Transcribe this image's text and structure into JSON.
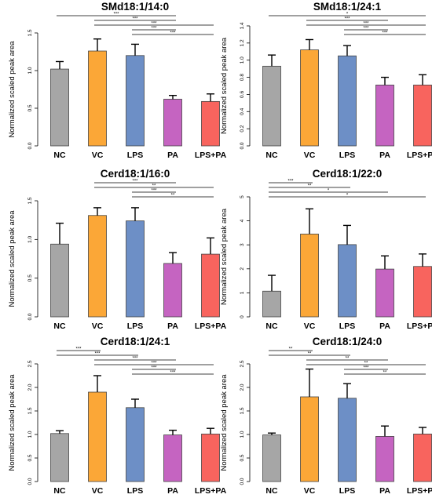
{
  "colors": {
    "NC": "#a6a6a6",
    "VC": "#fba737",
    "LPS": "#6d8fc6",
    "PA": "#c564c1",
    "LPS+PA": "#f8645e"
  },
  "chart_data": [
    {
      "type": "bar",
      "title": "SMd18:1/14:0",
      "ylabel": "Normalized scaled peak area",
      "ylim": [
        0,
        1.5
      ],
      "yticks": [
        "0.0",
        "0.5",
        "1.0",
        "1.5"
      ],
      "categories": [
        "NC",
        "VC",
        "LPS",
        "PA",
        "LPS+PA"
      ],
      "values": [
        1.02,
        1.26,
        1.2,
        0.62,
        0.59
      ],
      "errors": [
        0.1,
        0.16,
        0.15,
        0.05,
        0.1
      ],
      "significance": [
        {
          "from": "NC",
          "to": "PA",
          "label": "***"
        },
        {
          "from": "VC",
          "to": "PA",
          "label": "***"
        },
        {
          "from": "VC",
          "to": "LPS+PA",
          "label": "***"
        },
        {
          "from": "LPS",
          "to": "PA",
          "label": "***"
        },
        {
          "from": "LPS",
          "to": "LPS+PA",
          "label": "***"
        }
      ]
    },
    {
      "type": "bar",
      "title": "SMd18:1/24:1",
      "ylabel": "Normalized scaled peak area",
      "ylim": [
        0,
        1.4
      ],
      "yticks": [
        "0.0",
        "0.2",
        "0.4",
        "0.6",
        "0.8",
        "1.0",
        "1.2",
        "1.4"
      ],
      "categories": [
        "NC",
        "VC",
        "LPS",
        "PA",
        "LPS+PA"
      ],
      "values": [
        0.93,
        1.12,
        1.05,
        0.71,
        0.71
      ],
      "errors": [
        0.13,
        0.12,
        0.12,
        0.09,
        0.12
      ],
      "significance": [
        {
          "from": "NC",
          "to": "LPS+PA",
          "label": "*"
        },
        {
          "from": "VC",
          "to": "PA",
          "label": "***"
        },
        {
          "from": "VC",
          "to": "LPS+PA",
          "label": "***"
        },
        {
          "from": "LPS",
          "to": "PA",
          "label": "***"
        },
        {
          "from": "LPS",
          "to": "LPS+PA",
          "label": "***"
        }
      ]
    },
    {
      "type": "bar",
      "title": "Cerd18:1/16:0",
      "ylabel": "Normalized scaled peak area",
      "ylim": [
        0,
        1.5
      ],
      "yticks": [
        "0.0",
        "0.5",
        "1.0",
        "1.5"
      ],
      "categories": [
        "NC",
        "VC",
        "LPS",
        "PA",
        "LPS+PA"
      ],
      "values": [
        0.94,
        1.31,
        1.24,
        0.69,
        0.81
      ],
      "errors": [
        0.27,
        0.1,
        0.17,
        0.14,
        0.21
      ],
      "significance": [
        {
          "from": "VC",
          "to": "PA",
          "label": "***"
        },
        {
          "from": "VC",
          "to": "LPS+PA",
          "label": "**"
        },
        {
          "from": "LPS",
          "to": "PA",
          "label": "***"
        },
        {
          "from": "LPS",
          "to": "LPS+PA",
          "label": "**"
        }
      ]
    },
    {
      "type": "bar",
      "title": "Cerd18:1/22:0",
      "ylabel": "Normalized scaled peak area",
      "ylim": [
        0,
        5
      ],
      "yticks": [
        "0",
        "1",
        "2",
        "3",
        "4",
        "5"
      ],
      "categories": [
        "NC",
        "VC",
        "LPS",
        "PA",
        "LPS+PA"
      ],
      "values": [
        1.07,
        3.45,
        3.01,
        1.99,
        2.1
      ],
      "errors": [
        0.66,
        1.05,
        0.8,
        0.55,
        0.52
      ],
      "significance": [
        {
          "from": "NC",
          "to": "VC",
          "label": "***"
        },
        {
          "from": "NC",
          "to": "LPS",
          "label": "**"
        },
        {
          "from": "NC",
          "to": "PA",
          "label": "*"
        },
        {
          "from": "NC",
          "to": "LPS+PA",
          "label": "*"
        }
      ]
    },
    {
      "type": "bar",
      "title": "Cerd18:1/24:1",
      "ylabel": "Normalized scaled peak area",
      "ylim": [
        0,
        2.5
      ],
      "yticks": [
        "0.0",
        "0.5",
        "1.0",
        "1.5",
        "2.0",
        "2.5"
      ],
      "categories": [
        "NC",
        "VC",
        "LPS",
        "PA",
        "LPS+PA"
      ],
      "values": [
        1.02,
        1.9,
        1.57,
        0.99,
        1.01
      ],
      "errors": [
        0.06,
        0.35,
        0.18,
        0.1,
        0.12
      ],
      "significance": [
        {
          "from": "NC",
          "to": "VC",
          "label": "***"
        },
        {
          "from": "NC",
          "to": "LPS",
          "label": "***"
        },
        {
          "from": "VC",
          "to": "PA",
          "label": "***"
        },
        {
          "from": "VC",
          "to": "LPS+PA",
          "label": "***"
        },
        {
          "from": "LPS",
          "to": "PA",
          "label": "***"
        },
        {
          "from": "LPS",
          "to": "LPS+PA",
          "label": "***"
        }
      ]
    },
    {
      "type": "bar",
      "title": "Cerd18:1/24:0",
      "ylabel": "Normalized scaled peak area",
      "ylim": [
        0,
        2.5
      ],
      "yticks": [
        "0.0",
        "0.5",
        "1.0",
        "1.5",
        "2.0",
        "2.5"
      ],
      "categories": [
        "NC",
        "VC",
        "LPS",
        "PA",
        "LPS+PA"
      ],
      "values": [
        0.99,
        1.8,
        1.77,
        0.96,
        1.01
      ],
      "errors": [
        0.04,
        0.59,
        0.31,
        0.22,
        0.14
      ],
      "significance": [
        {
          "from": "NC",
          "to": "VC",
          "label": "**"
        },
        {
          "from": "NC",
          "to": "LPS",
          "label": "**"
        },
        {
          "from": "VC",
          "to": "PA",
          "label": "**"
        },
        {
          "from": "VC",
          "to": "LPS+PA",
          "label": "**"
        },
        {
          "from": "LPS",
          "to": "PA",
          "label": "***"
        },
        {
          "from": "LPS",
          "to": "LPS+PA",
          "label": "**"
        }
      ]
    }
  ]
}
